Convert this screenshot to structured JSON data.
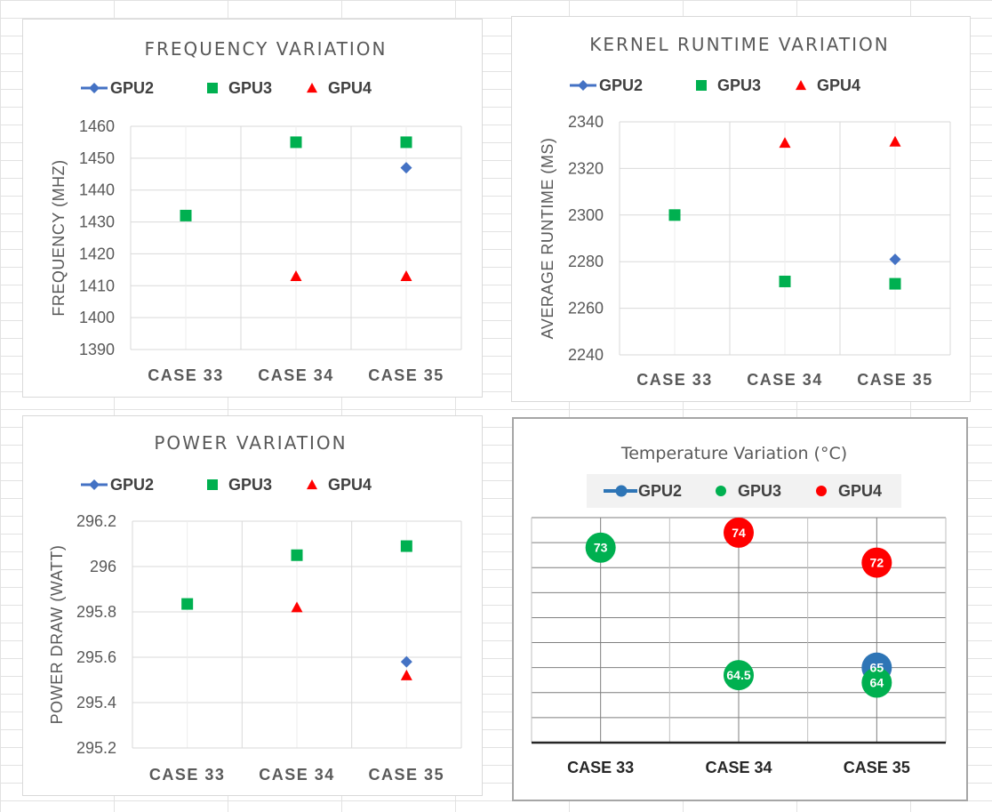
{
  "chart_data": [
    {
      "type": "scatter",
      "title": "FREQUENCY VARIATION",
      "xlabel": "",
      "ylabel": "FREQUENCY (MHZ)",
      "categories": [
        "CASE 33",
        "CASE 34",
        "CASE 35"
      ],
      "ylim": [
        1390,
        1460
      ],
      "yticks": [
        1390,
        1400,
        1410,
        1420,
        1430,
        1440,
        1450,
        1460
      ],
      "legend_position": "top",
      "grid": true,
      "series": [
        {
          "name": "GPU2",
          "marker": "diamond",
          "color": "#4472C4",
          "values": [
            null,
            null,
            1447
          ]
        },
        {
          "name": "GPU3",
          "marker": "square",
          "color": "#00B050",
          "values": [
            1432,
            1455,
            1455
          ]
        },
        {
          "name": "GPU4",
          "marker": "triangle",
          "color": "#FF0000",
          "values": [
            null,
            1413,
            1413
          ]
        }
      ]
    },
    {
      "type": "scatter",
      "title": "KERNEL RUNTIME VARIATION",
      "xlabel": "",
      "ylabel": "AVERAGE RUNTIME (MS)",
      "categories": [
        "CASE 33",
        "CASE 34",
        "CASE 35"
      ],
      "ylim": [
        2240,
        2340
      ],
      "yticks": [
        2240,
        2260,
        2280,
        2300,
        2320,
        2340
      ],
      "legend_position": "top",
      "grid": true,
      "series": [
        {
          "name": "GPU2",
          "marker": "diamond",
          "color": "#4472C4",
          "values": [
            null,
            null,
            2281
          ]
        },
        {
          "name": "GPU3",
          "marker": "square",
          "color": "#00B050",
          "values": [
            2300,
            2271.5,
            2270.5
          ]
        },
        {
          "name": "GPU4",
          "marker": "triangle",
          "color": "#FF0000",
          "values": [
            null,
            2331,
            2331.5
          ]
        }
      ]
    },
    {
      "type": "scatter",
      "title": "POWER VARIATION",
      "xlabel": "",
      "ylabel": "POWER DRAW (WATT)",
      "categories": [
        "CASE 33",
        "CASE 34",
        "CASE 35"
      ],
      "ylim": [
        295.2,
        296.2
      ],
      "yticks": [
        295.2,
        295.4,
        295.6,
        295.8,
        296,
        296.2
      ],
      "legend_position": "top",
      "grid": true,
      "series": [
        {
          "name": "GPU2",
          "marker": "diamond",
          "color": "#4472C4",
          "values": [
            null,
            null,
            295.58
          ]
        },
        {
          "name": "GPU3",
          "marker": "square",
          "color": "#00B050",
          "values": [
            295.835,
            296.05,
            296.09
          ]
        },
        {
          "name": "GPU4",
          "marker": "triangle",
          "color": "#FF0000",
          "values": [
            null,
            295.82,
            295.52
          ]
        }
      ]
    },
    {
      "type": "scatter",
      "title": "Temperature Variation (°C)",
      "xlabel": "",
      "ylabel": "",
      "categories": [
        "CASE 33",
        "CASE 34",
        "CASE 35"
      ],
      "ylim": [
        60,
        75
      ],
      "legend_position": "top",
      "grid": true,
      "series": [
        {
          "name": "GPU2",
          "marker": "circle",
          "color": "#2E75B6",
          "values": [
            null,
            null,
            65
          ]
        },
        {
          "name": "GPU3",
          "marker": "circle",
          "color": "#00B050",
          "values": [
            73,
            64.5,
            64
          ]
        },
        {
          "name": "GPU4",
          "marker": "circle",
          "color": "#FF0000",
          "values": [
            null,
            74,
            72
          ]
        }
      ]
    }
  ]
}
